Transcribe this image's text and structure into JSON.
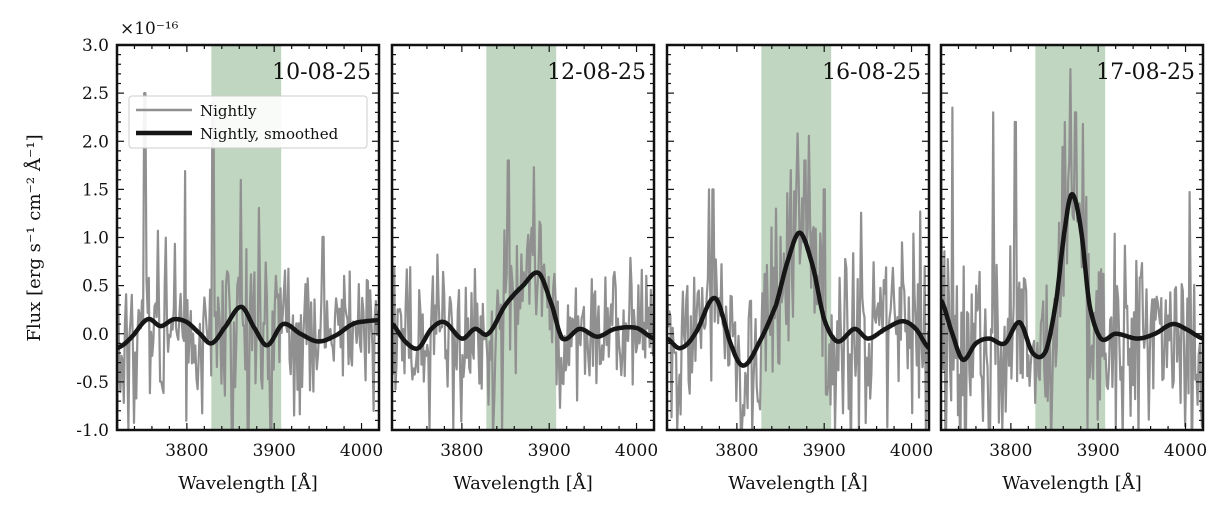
{
  "figure": {
    "ylabel": "Flux [erg s⁻¹ cm⁻² Å⁻¹]",
    "offset_text": "×10⁻¹⁶",
    "colors": {
      "nightly": "#909090",
      "smoothed": "#161616",
      "band": "#a7c4a7"
    }
  },
  "chart_data": [
    {
      "type": "line",
      "title": "10-08-25",
      "xlabel": "Wavelength [Å]",
      "ylabel": "Flux [erg s⁻¹ cm⁻² Å⁻¹]",
      "xlim": [
        3720,
        4020
      ],
      "ylim": [
        -1.0,
        3.0
      ],
      "xticks": [
        3800,
        3900,
        4000
      ],
      "yticks": [
        -1.0,
        -0.5,
        0.0,
        0.5,
        1.0,
        1.5,
        2.0,
        2.5,
        3.0
      ],
      "highlight_band": [
        3828,
        3908
      ],
      "legend": {
        "position": "upper-left",
        "entries": [
          "Nightly",
          "Nightly, smoothed"
        ]
      },
      "series": [
        {
          "name": "Nightly",
          "type": "noisy",
          "sigma": 0.42,
          "seed": 11,
          "spikes": [
            [
              3752,
              2.5
            ],
            [
              3733,
              -1.0
            ],
            [
              3830,
              2.4
            ],
            [
              3862,
              1.6
            ],
            [
              3852,
              -1.0
            ],
            [
              3896,
              -1.0
            ],
            [
              3870,
              -1.0
            ]
          ]
        },
        {
          "name": "Nightly, smoothed",
          "type": "smooth",
          "x": [
            3720,
            3735,
            3755,
            3770,
            3785,
            3800,
            3815,
            3828,
            3842,
            3862,
            3878,
            3892,
            3910,
            3930,
            3950,
            3970,
            3990,
            4005,
            4020
          ],
          "y": [
            -0.15,
            -0.05,
            0.15,
            0.08,
            0.15,
            0.12,
            0.0,
            -0.1,
            0.05,
            0.28,
            0.05,
            -0.12,
            0.1,
            0.0,
            -0.08,
            -0.02,
            0.1,
            0.13,
            0.14
          ]
        }
      ]
    },
    {
      "type": "line",
      "title": "12-08-25",
      "xlabel": "Wavelength [Å]",
      "xlim": [
        3720,
        4020
      ],
      "ylim": [
        -1.0,
        3.0
      ],
      "xticks": [
        3800,
        3900,
        4000
      ],
      "highlight_band": [
        3828,
        3908
      ],
      "series": [
        {
          "name": "Nightly",
          "type": "noisy",
          "sigma": 0.38,
          "seed": 23,
          "spikes": [
            [
              3853,
              1.8
            ],
            [
              3880,
              1.1
            ],
            [
              3763,
              -1.0
            ],
            [
              3846,
              -1.0
            ],
            [
              3790,
              -1.0
            ]
          ]
        },
        {
          "name": "Nightly, smoothed",
          "type": "smooth",
          "x": [
            3720,
            3735,
            3750,
            3765,
            3780,
            3800,
            3815,
            3830,
            3850,
            3870,
            3888,
            3903,
            3915,
            3935,
            3955,
            3975,
            4000,
            4020
          ],
          "y": [
            0.1,
            -0.08,
            -0.15,
            0.05,
            0.12,
            -0.05,
            0.05,
            0.0,
            0.3,
            0.5,
            0.63,
            0.3,
            -0.05,
            0.05,
            -0.03,
            0.05,
            0.06,
            -0.05
          ]
        }
      ]
    },
    {
      "type": "line",
      "title": "16-08-25",
      "xlabel": "Wavelength [Å]",
      "xlim": [
        3720,
        4020
      ],
      "ylim": [
        -1.0,
        3.0
      ],
      "xticks": [
        3800,
        3900,
        4000
      ],
      "highlight_band": [
        3828,
        3908
      ],
      "series": [
        {
          "name": "Nightly",
          "type": "noisy",
          "sigma": 0.45,
          "seed": 37,
          "spikes": [
            [
              3878,
              1.8
            ],
            [
              3862,
              1.7
            ],
            [
              3768,
              1.5
            ],
            [
              3773,
              1.5
            ],
            [
              3845,
              1.3
            ],
            [
              3900,
              1.5
            ],
            [
              3805,
              -1.0
            ],
            [
              3732,
              -1.0
            ],
            [
              3940,
              -1.0
            ]
          ]
        },
        {
          "name": "Nightly, smoothed",
          "type": "smooth",
          "x": [
            3720,
            3735,
            3752,
            3775,
            3795,
            3808,
            3825,
            3845,
            3858,
            3872,
            3887,
            3900,
            3915,
            3935,
            3950,
            3970,
            3990,
            4005,
            4020
          ],
          "y": [
            -0.05,
            -0.15,
            0.0,
            0.37,
            -0.15,
            -0.33,
            -0.1,
            0.3,
            0.75,
            1.05,
            0.7,
            0.15,
            -0.08,
            0.05,
            -0.05,
            0.05,
            0.13,
            0.05,
            -0.15
          ]
        }
      ]
    },
    {
      "type": "line",
      "title": "17-08-25",
      "xlabel": "Wavelength [Å]",
      "xlim": [
        3720,
        4020
      ],
      "ylim": [
        -1.0,
        3.0
      ],
      "xticks": [
        3800,
        3900,
        4000
      ],
      "highlight_band": [
        3828,
        3908
      ],
      "series": [
        {
          "name": "Nightly",
          "type": "noisy",
          "sigma": 0.5,
          "seed": 53,
          "spikes": [
            [
              3868,
              2.75
            ],
            [
              3874,
              2.3
            ],
            [
              3862,
              2.2
            ],
            [
              3733,
              2.35
            ],
            [
              3780,
              2.3
            ],
            [
              3805,
              2.2
            ],
            [
              3748,
              -1.0
            ],
            [
              3790,
              -1.0
            ],
            [
              3888,
              -1.0
            ],
            [
              3920,
              -1.0
            ]
          ]
        },
        {
          "name": "Nightly, smoothed",
          "type": "smooth",
          "x": [
            3720,
            3733,
            3745,
            3760,
            3775,
            3793,
            3810,
            3825,
            3840,
            3852,
            3862,
            3870,
            3880,
            3890,
            3903,
            3920,
            3945,
            3965,
            3985,
            4000,
            4020
          ],
          "y": [
            0.35,
            0.0,
            -0.27,
            -0.1,
            -0.05,
            -0.1,
            0.12,
            -0.2,
            -0.18,
            0.35,
            1.1,
            1.45,
            1.1,
            0.3,
            -0.05,
            0.0,
            -0.05,
            0.0,
            0.1,
            0.05,
            -0.05
          ]
        }
      ]
    }
  ]
}
